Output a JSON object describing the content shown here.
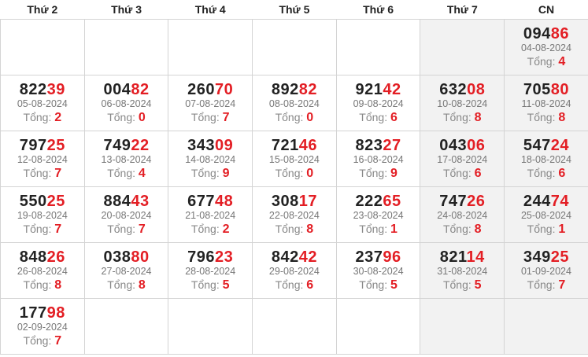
{
  "weekdays": [
    "Thứ 2",
    "Thứ 3",
    "Thứ 4",
    "Thứ 5",
    "Thứ 6",
    "Thứ 7",
    "CN"
  ],
  "sum_label": "Tổng:",
  "weeks": [
    [
      null,
      null,
      null,
      null,
      null,
      null,
      {
        "head": "094",
        "tail": "86",
        "date": "04-08-2024",
        "sum": "4"
      }
    ],
    [
      {
        "head": "822",
        "tail": "39",
        "date": "05-08-2024",
        "sum": "2"
      },
      {
        "head": "004",
        "tail": "82",
        "date": "06-08-2024",
        "sum": "0"
      },
      {
        "head": "260",
        "tail": "70",
        "date": "07-08-2024",
        "sum": "7"
      },
      {
        "head": "892",
        "tail": "82",
        "date": "08-08-2024",
        "sum": "0"
      },
      {
        "head": "921",
        "tail": "42",
        "date": "09-08-2024",
        "sum": "6"
      },
      {
        "head": "632",
        "tail": "08",
        "date": "10-08-2024",
        "sum": "8"
      },
      {
        "head": "705",
        "tail": "80",
        "date": "11-08-2024",
        "sum": "8"
      }
    ],
    [
      {
        "head": "797",
        "tail": "25",
        "date": "12-08-2024",
        "sum": "7"
      },
      {
        "head": "749",
        "tail": "22",
        "date": "13-08-2024",
        "sum": "4"
      },
      {
        "head": "343",
        "tail": "09",
        "date": "14-08-2024",
        "sum": "9"
      },
      {
        "head": "721",
        "tail": "46",
        "date": "15-08-2024",
        "sum": "0"
      },
      {
        "head": "823",
        "tail": "27",
        "date": "16-08-2024",
        "sum": "9"
      },
      {
        "head": "043",
        "tail": "06",
        "date": "17-08-2024",
        "sum": "6"
      },
      {
        "head": "547",
        "tail": "24",
        "date": "18-08-2024",
        "sum": "6"
      }
    ],
    [
      {
        "head": "550",
        "tail": "25",
        "date": "19-08-2024",
        "sum": "7"
      },
      {
        "head": "884",
        "tail": "43",
        "date": "20-08-2024",
        "sum": "7"
      },
      {
        "head": "677",
        "tail": "48",
        "date": "21-08-2024",
        "sum": "2"
      },
      {
        "head": "308",
        "tail": "17",
        "date": "22-08-2024",
        "sum": "8"
      },
      {
        "head": "222",
        "tail": "65",
        "date": "23-08-2024",
        "sum": "1"
      },
      {
        "head": "747",
        "tail": "26",
        "date": "24-08-2024",
        "sum": "8"
      },
      {
        "head": "244",
        "tail": "74",
        "date": "25-08-2024",
        "sum": "1"
      }
    ],
    [
      {
        "head": "848",
        "tail": "26",
        "date": "26-08-2024",
        "sum": "8"
      },
      {
        "head": "038",
        "tail": "80",
        "date": "27-08-2024",
        "sum": "8"
      },
      {
        "head": "796",
        "tail": "23",
        "date": "28-08-2024",
        "sum": "5"
      },
      {
        "head": "842",
        "tail": "42",
        "date": "29-08-2024",
        "sum": "6"
      },
      {
        "head": "237",
        "tail": "96",
        "date": "30-08-2024",
        "sum": "5"
      },
      {
        "head": "821",
        "tail": "14",
        "date": "31-08-2024",
        "sum": "5"
      },
      {
        "head": "349",
        "tail": "25",
        "date": "01-09-2024",
        "sum": "7"
      }
    ],
    [
      {
        "head": "177",
        "tail": "98",
        "date": "02-09-2024",
        "sum": "7"
      },
      null,
      null,
      null,
      null,
      null,
      null
    ]
  ]
}
